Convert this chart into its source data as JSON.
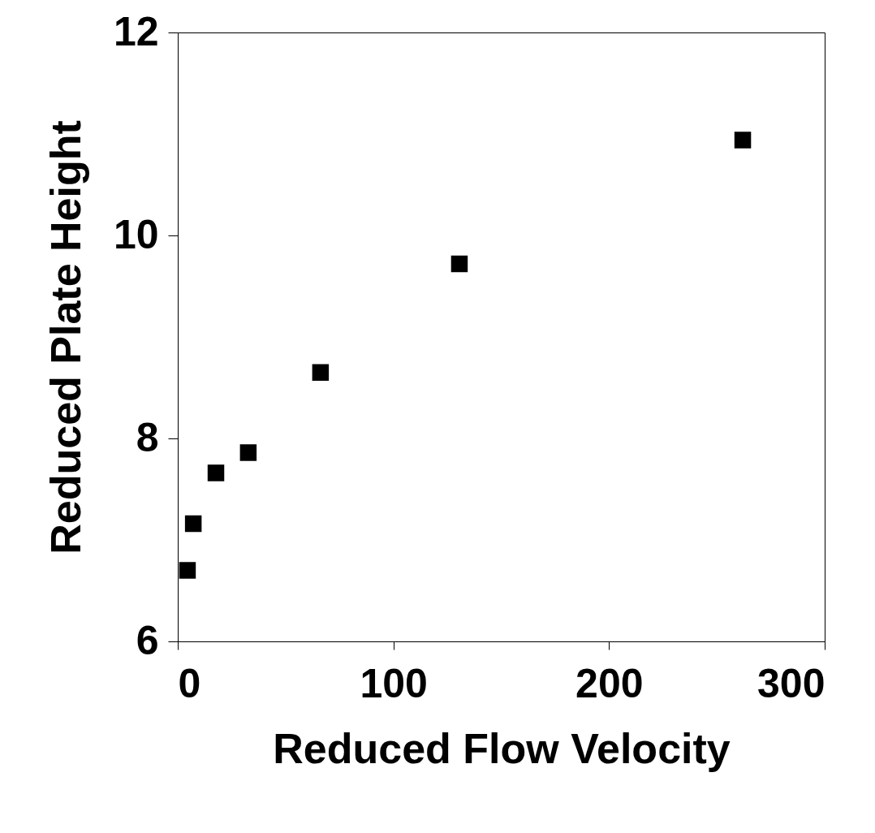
{
  "chart_data": {
    "type": "scatter",
    "xlabel": "Reduced Flow Velocity",
    "ylabel": "Reduced Plate Height",
    "x": [
      4.5,
      7.2,
      17.7,
      32.7,
      66.2,
      130.6,
      262
    ],
    "series": [
      {
        "color": "#000000",
        "values": [
          6.7,
          7.16,
          7.66,
          7.86,
          8.65,
          9.72,
          10.94
        ]
      }
    ],
    "xlim": [
      0,
      300
    ],
    "xticks": [
      0,
      100,
      200,
      300
    ],
    "ylim": [
      6,
      12
    ],
    "yticks": [
      6,
      8,
      10,
      12
    ],
    "marker": "square",
    "grid": false,
    "legend": false
  }
}
